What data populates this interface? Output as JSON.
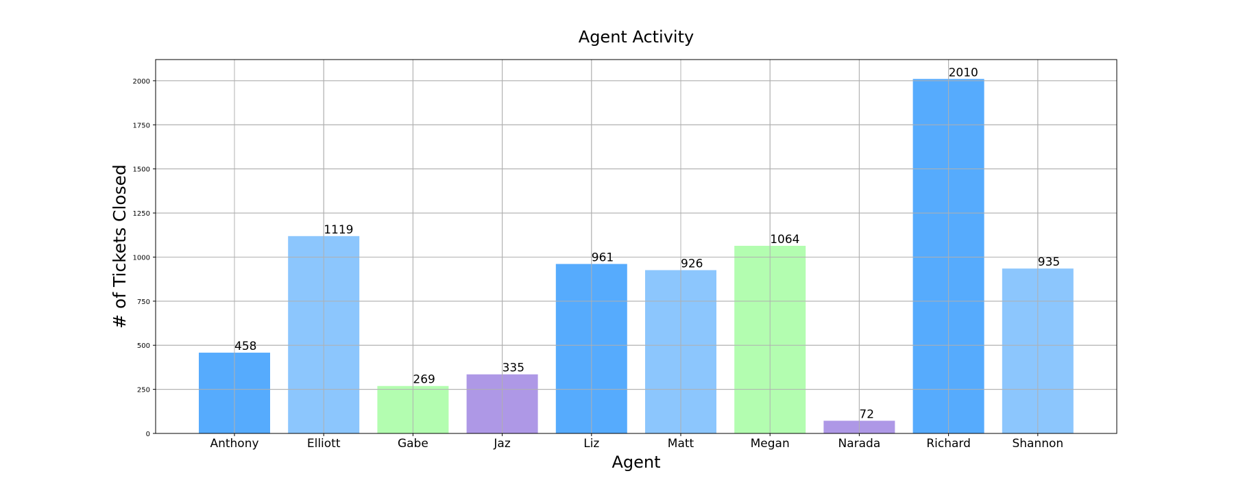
{
  "chart_data": {
    "type": "bar",
    "title": "Agent Activity",
    "xlabel": "Agent",
    "ylabel": "# of Tickets Closed",
    "categories": [
      "Anthony",
      "Elliott",
      "Gabe",
      "Jaz",
      "Liz",
      "Matt",
      "Megan",
      "Narada",
      "Richard",
      "Shannon"
    ],
    "values": [
      458,
      1119,
      269,
      335,
      961,
      926,
      1064,
      72,
      2010,
      935
    ],
    "value_labels": [
      "458",
      "1119",
      "269",
      "335",
      "961",
      "926",
      "1064",
      "72",
      "2010",
      "935"
    ],
    "bar_colors": [
      "#56abfd",
      "#8cc6fd",
      "#b3fdb0",
      "#ae98e6",
      "#56abfd",
      "#8cc6fd",
      "#b3fdb0",
      "#ae98e6",
      "#56abfd",
      "#8cc6fd"
    ],
    "yticks": [
      0,
      250,
      500,
      750,
      1000,
      1250,
      1500,
      1750,
      2000
    ],
    "ytick_labels": [
      "0",
      "250",
      "500",
      "750",
      "1000",
      "1250",
      "1500",
      "1750",
      "2000"
    ],
    "ylim": [
      0,
      2120
    ],
    "grid": true,
    "legend": false
  }
}
